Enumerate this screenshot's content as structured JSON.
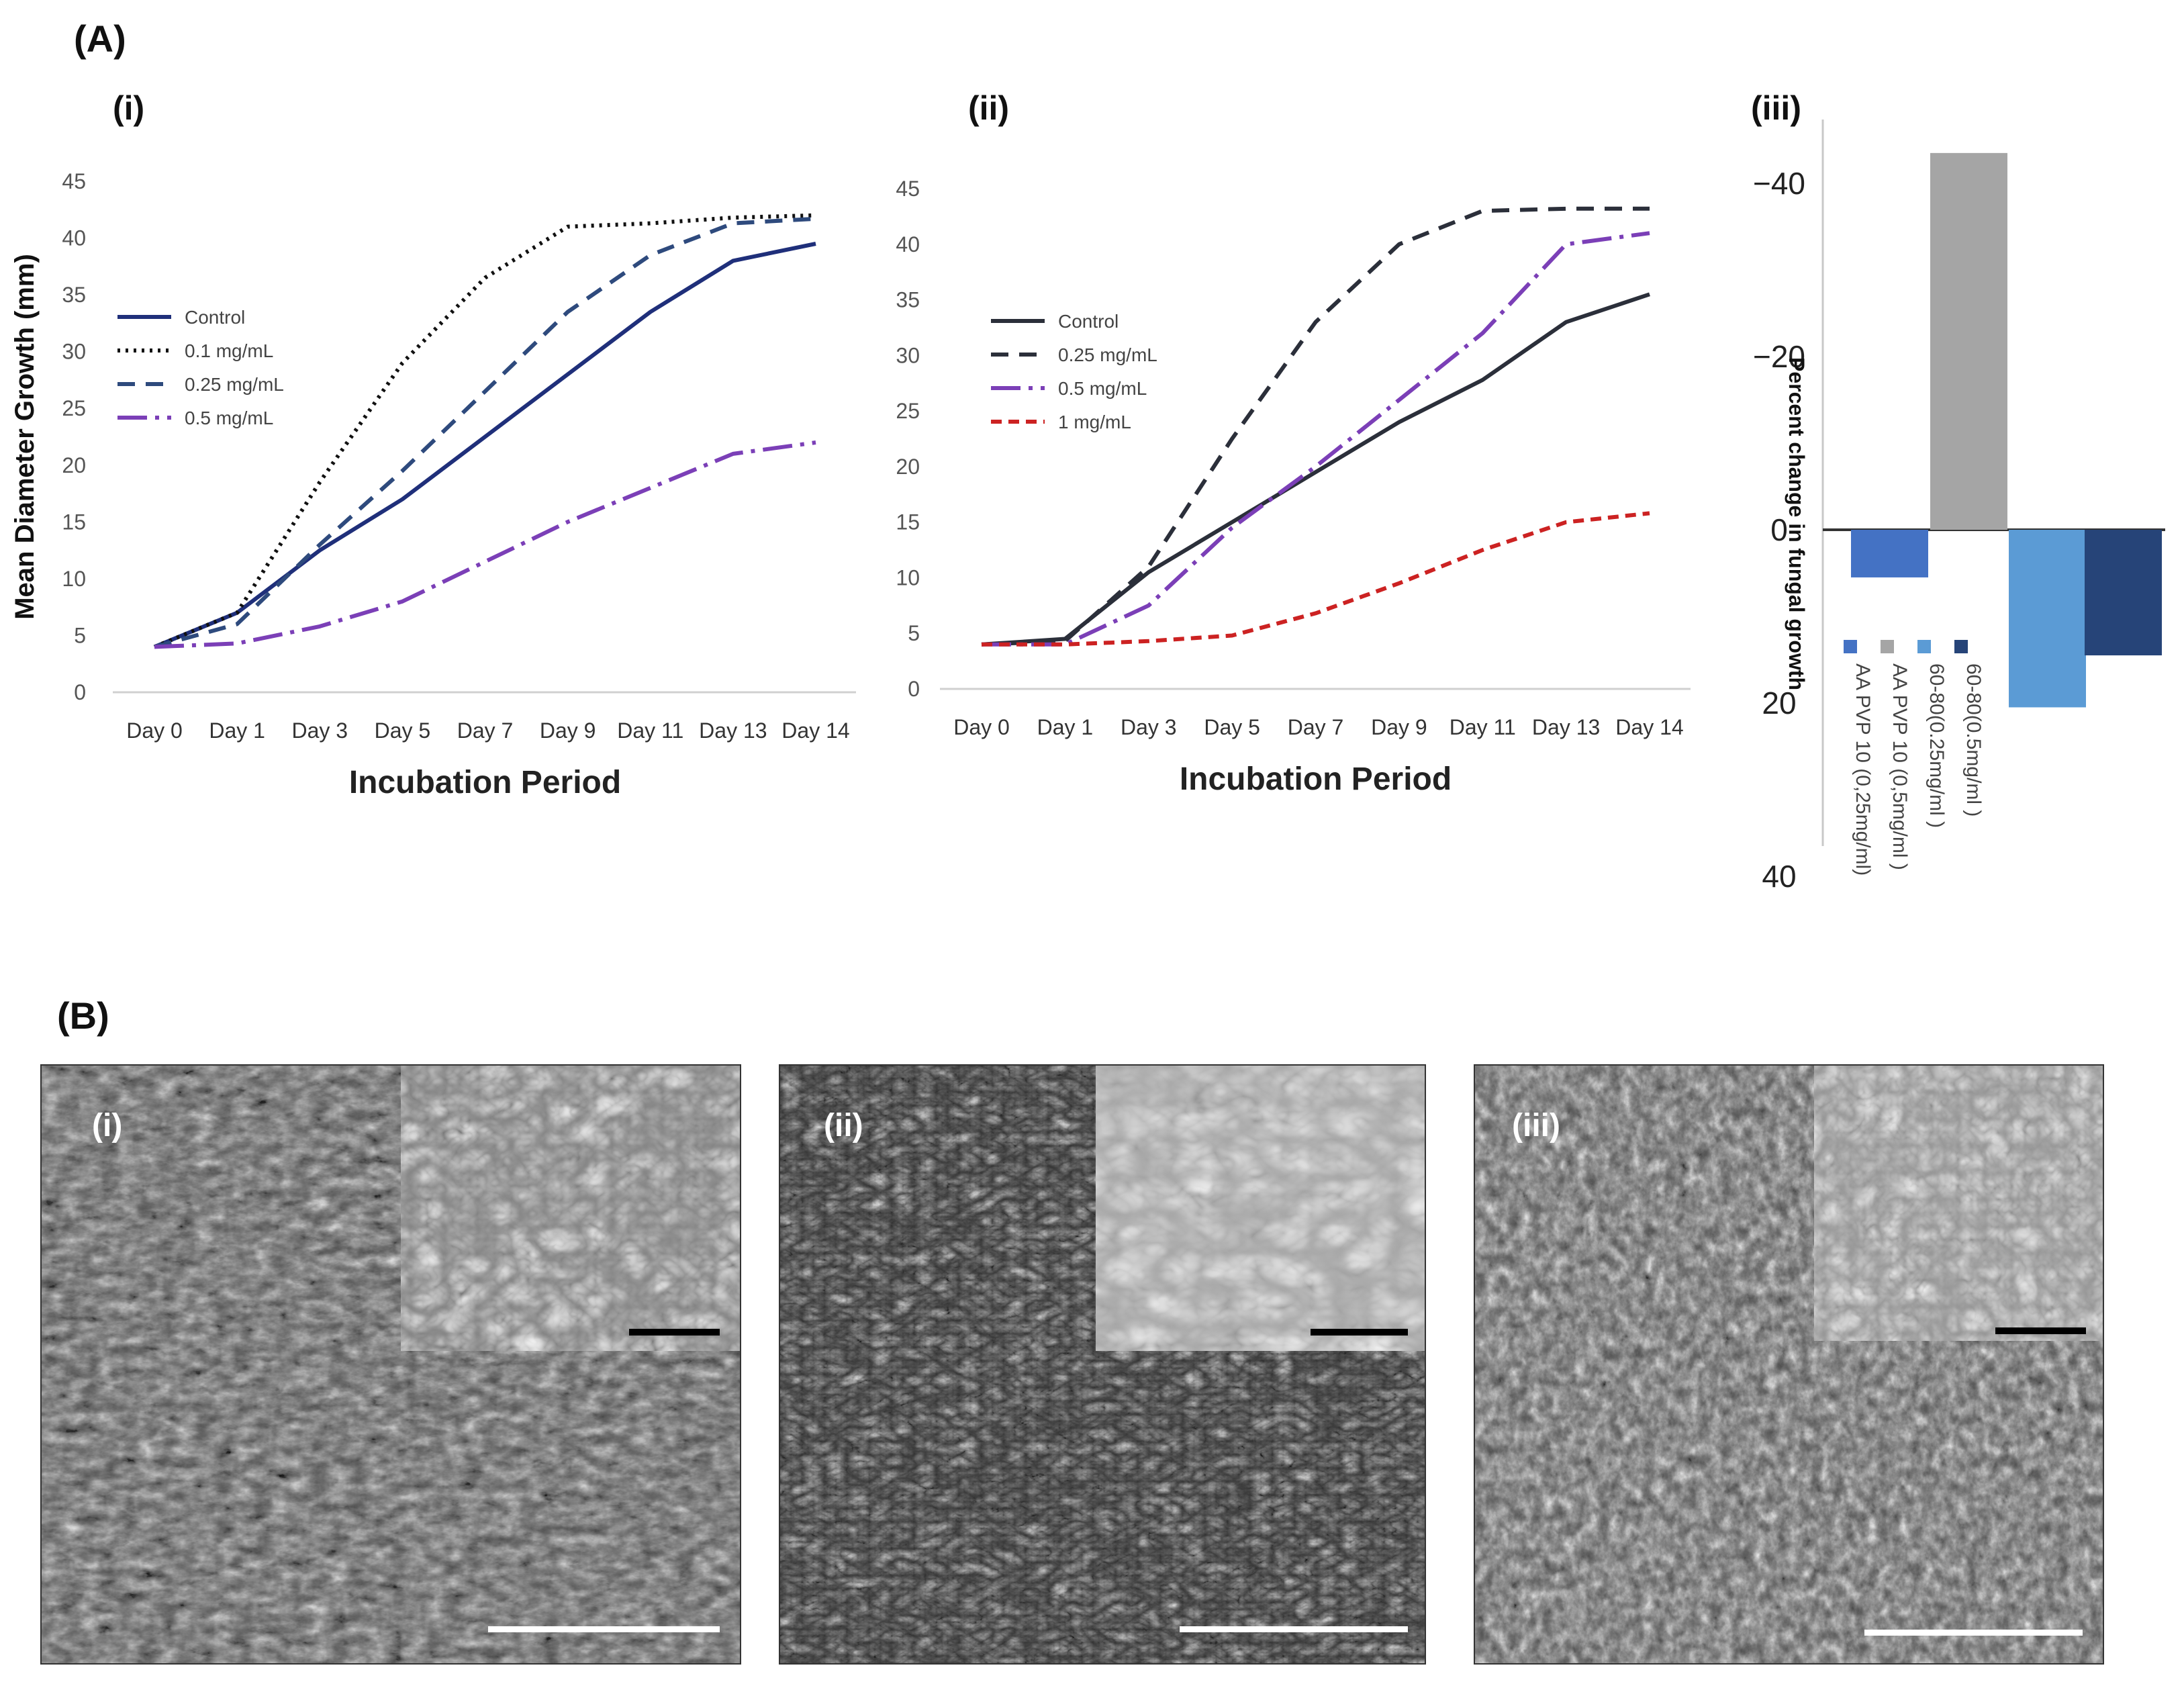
{
  "figure": {
    "label_A": "(A)",
    "label_B": "(B)"
  },
  "chart_data": [
    {
      "id": "i",
      "type": "line",
      "panel_label": "(i)",
      "title": "",
      "xlabel": "Incubation Period",
      "ylabel": "Mean Diameter Growth (mm)",
      "ylim": [
        0,
        45
      ],
      "yticks": [
        0,
        5,
        10,
        15,
        20,
        25,
        30,
        35,
        40,
        45
      ],
      "categories": [
        "Day 0",
        "Day 1",
        "Day 3",
        "Day 5",
        "Day 7",
        "Day 9",
        "Day 11",
        "Day 13",
        "Day 14"
      ],
      "legend_position": "upper-left",
      "series": [
        {
          "name": "Control",
          "color": "#1f2f7a",
          "dash": "solid",
          "values": [
            4,
            7,
            12.5,
            17,
            22.5,
            28,
            33.5,
            38,
            39.5
          ]
        },
        {
          "name": "0.1 mg/mL",
          "color": "#111111",
          "dash": "dotted",
          "values": [
            4,
            7,
            18.5,
            29,
            36.5,
            41,
            41.3,
            41.8,
            42
          ]
        },
        {
          "name": "0.25 mg/mL",
          "color": "#2e4a7d",
          "dash": "dashed",
          "values": [
            4,
            6,
            13,
            19.5,
            26.5,
            33.5,
            38.5,
            41.3,
            41.7
          ]
        },
        {
          "name": "0.5 mg/mL",
          "color": "#7b3fb7",
          "dash": "longdash",
          "values": [
            4,
            4.3,
            5.8,
            8,
            11.5,
            15,
            18,
            21,
            22
          ]
        }
      ]
    },
    {
      "id": "ii",
      "type": "line",
      "panel_label": "(ii)",
      "title": "",
      "xlabel": "Incubation Period",
      "ylabel": "",
      "ylim": [
        0,
        45
      ],
      "yticks": [
        0,
        5,
        10,
        15,
        20,
        25,
        30,
        35,
        40,
        45
      ],
      "categories": [
        "Day 0",
        "Day 1",
        "Day 3",
        "Day 5",
        "Day 7",
        "Day 9",
        "Day 11",
        "Day 13",
        "Day 14"
      ],
      "legend_position": "upper-left",
      "series": [
        {
          "name": "Control",
          "color": "#2b2f3a",
          "dash": "solid",
          "values": [
            4,
            4.5,
            10.5,
            15,
            19.5,
            24,
            27.8,
            33,
            35.5
          ]
        },
        {
          "name": "0.25 mg/mL",
          "color": "#2b2f3a",
          "dash": "dashed",
          "values": [
            4,
            4.3,
            11,
            22.5,
            33,
            40,
            43,
            43.2,
            43.2
          ]
        },
        {
          "name": "0.5 mg/mL",
          "color": "#7b3fb7",
          "dash": "longdash",
          "values": [
            4,
            4,
            7.5,
            14.5,
            20,
            26,
            32,
            40,
            41
          ]
        },
        {
          "name": "1 mg/mL",
          "color": "#cc2222",
          "dash": "shortdash",
          "values": [
            4,
            4,
            4.3,
            4.8,
            6.8,
            9.5,
            12.5,
            15,
            15.8
          ]
        }
      ]
    },
    {
      "id": "iii",
      "type": "bar",
      "panel_label": "(iii)",
      "title": "",
      "xlabel": "",
      "ylabel": "Percent change in fungal growth",
      "ylim": [
        -45,
        40
      ],
      "yticks": [
        -40,
        -20,
        0,
        20,
        40
      ],
      "ytick_labels": [
        "−40",
        "−20",
        "0",
        "20",
        "40"
      ],
      "orientation": "rotated-90",
      "categories": [
        "AA PVP 10 (0,25mg/ml)",
        "AA PVP 10 (0,5mg/ml )",
        "60-80(0.25mg/ml )",
        "60-80(0.5mg/ml )"
      ],
      "series": [
        {
          "name": "Percent change",
          "values": [
            5.5,
            -43.5,
            20.5,
            14.5
          ],
          "colors": [
            "#4472c4",
            "#a5a5a5",
            "#5b9bd5",
            "#264478"
          ]
        }
      ]
    }
  ],
  "sem": [
    {
      "label": "(i)"
    },
    {
      "label": "(ii)"
    },
    {
      "label": "(iii)"
    }
  ]
}
